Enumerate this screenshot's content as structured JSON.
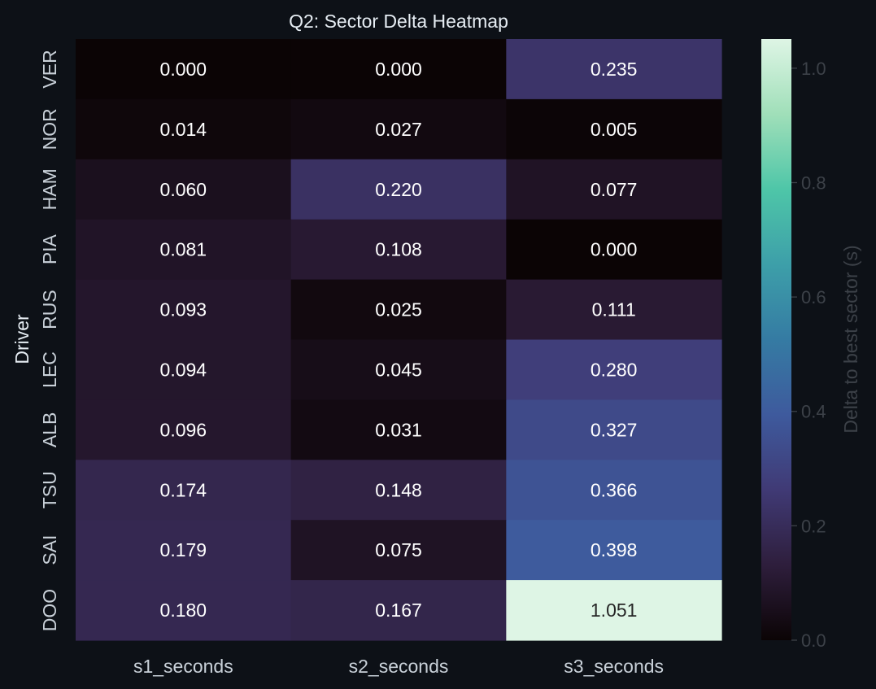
{
  "chart_data": {
    "type": "heatmap",
    "title": "Q2: Sector Delta Heatmap",
    "xlabel": "",
    "ylabel": "Driver",
    "x_categories": [
      "s1_seconds",
      "s2_seconds",
      "s3_seconds"
    ],
    "y_categories": [
      "VER",
      "NOR",
      "HAM",
      "PIA",
      "RUS",
      "LEC",
      "ALB",
      "TSU",
      "SAI",
      "DOO"
    ],
    "values": [
      [
        0.0,
        0.0,
        0.235
      ],
      [
        0.014,
        0.027,
        0.005
      ],
      [
        0.06,
        0.22,
        0.077
      ],
      [
        0.081,
        0.108,
        0.0
      ],
      [
        0.093,
        0.025,
        0.111
      ],
      [
        0.094,
        0.045,
        0.28
      ],
      [
        0.096,
        0.031,
        0.327
      ],
      [
        0.174,
        0.148,
        0.366
      ],
      [
        0.179,
        0.075,
        0.398
      ],
      [
        0.18,
        0.167,
        1.051
      ]
    ],
    "value_format": "%.3f",
    "colorbar": {
      "label": "Delta to best sector (s)",
      "range": [
        0,
        1.051
      ],
      "ticks": [
        0.0,
        0.2,
        0.4,
        0.6,
        0.8,
        1.0
      ],
      "tick_labels": [
        "0.0",
        "0.2",
        "0.4",
        "0.6",
        "0.8",
        "1.0"
      ],
      "colormap": "mako"
    },
    "grid": false,
    "legend": "none"
  },
  "colors": {
    "background": "#0d1117",
    "text": "#e6edf3",
    "tick_text": "#c9d1d9",
    "muted_text": "#3c4148",
    "cell_text_light": "#ffffff",
    "cell_text_dark": "#262626",
    "colormap_stops": [
      "#0b0405",
      "#2e1e3c",
      "#403a75",
      "#3e5a9d",
      "#357ba3",
      "#3d9fa9",
      "#4ec6a8",
      "#a0dfb9",
      "#def5e5"
    ]
  }
}
